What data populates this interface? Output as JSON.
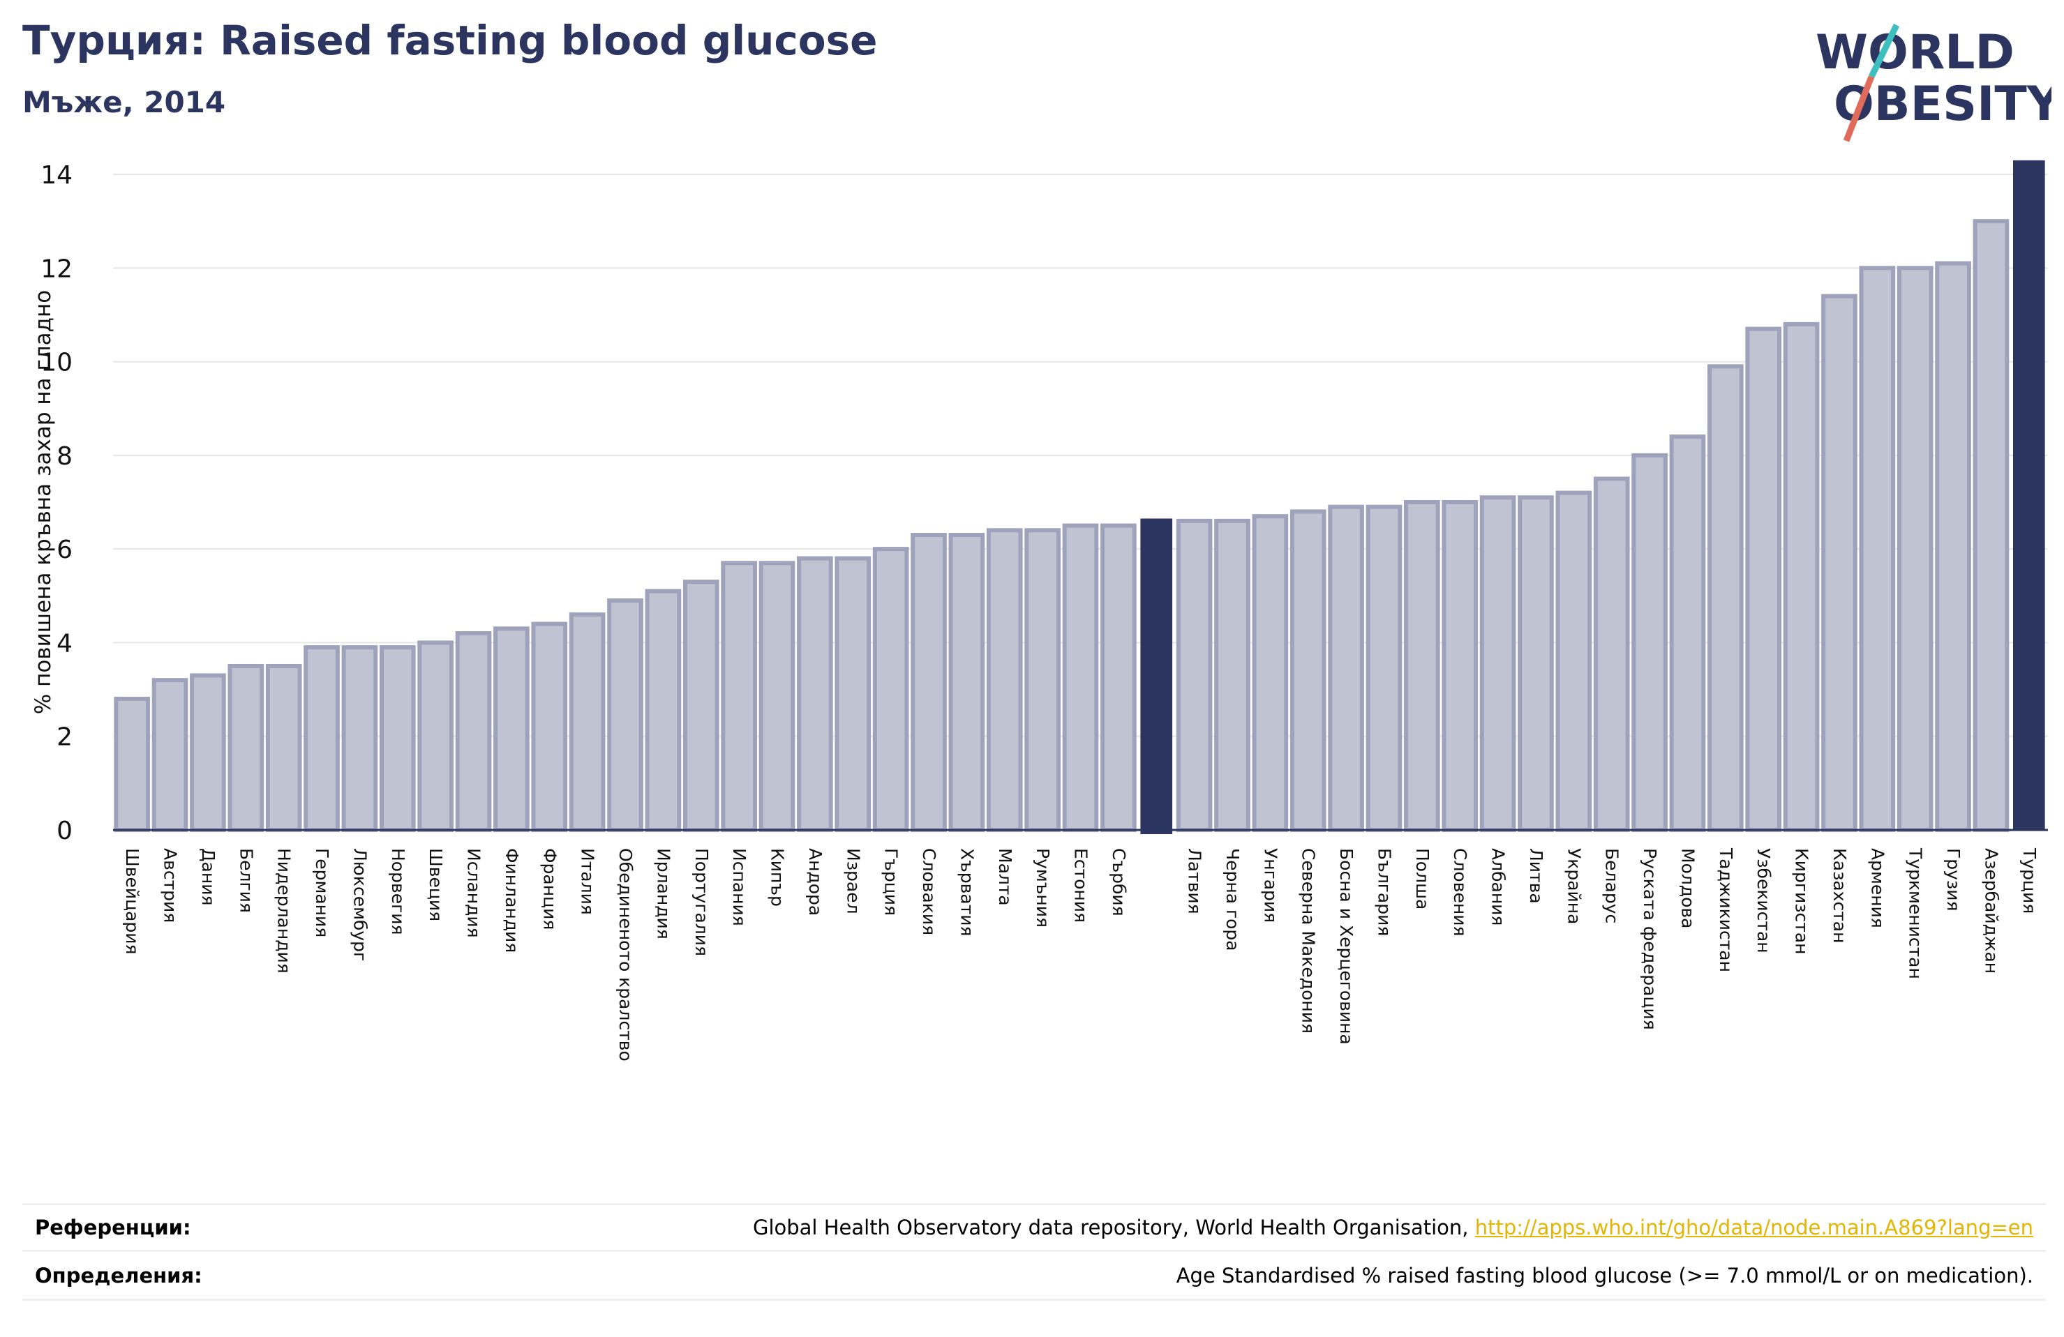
{
  "header": {
    "title": "Турция: Raised fasting blood glucose",
    "subtitle": "Мъже, 2014"
  },
  "logo": {
    "line1": "WORLD",
    "line2": "OBESITY"
  },
  "colors": {
    "title": "#2b3560",
    "bar": "#c0c3d2",
    "bar_border": "#9ea2ba",
    "highlight": "#2b3560",
    "link": "#e3b505",
    "logo_teal": "#3dbfbf",
    "logo_red": "#e06b5a"
  },
  "footer": {
    "references_label": "Референции:",
    "references_text": "Global Health Observatory data repository, World Health Organisation,",
    "references_link": "http://apps.who.int/gho/data/node.main.A869?lang=en",
    "definitions_label": "Определения:",
    "definitions_text": "Age Standardised % raised fasting blood glucose (>= 7.0 mmol/L or on medication)."
  },
  "chart_data": {
    "type": "bar",
    "ylabel": "% повишена кръвна захар на гладно",
    "ylim": [
      0,
      14
    ],
    "yticks": [
      0,
      2,
      4,
      6,
      8,
      10,
      12,
      14
    ],
    "grid": true,
    "categories": [
      "Швейцария",
      "Австрия",
      "Дания",
      "Белгия",
      "Нидерландия",
      "Германия",
      "Люксембург",
      "Норвегия",
      "Швеция",
      "Исландия",
      "Финландия",
      "Франция",
      "Италия",
      "Обединеното кралство",
      "Ирландия",
      "Португалия",
      "Испания",
      "Кипър",
      "Андора",
      "Израел",
      "Гърция",
      "Словакия",
      "Хърватия",
      "Малта",
      "Румъния",
      "Естония",
      "Сърбия",
      "",
      "Латвия",
      "Черна гора",
      "Унгария",
      "Северна Македония",
      "Босна и Херцеговина",
      "България",
      "Полша",
      "Словения",
      "Албания",
      "Литва",
      "Украйна",
      "Беларус",
      "Руската федерация",
      "Молдова",
      "Таджикистан",
      "Узбекистан",
      "Киргизстан",
      "Казахстан",
      "Армения",
      "Туркменистан",
      "Грузия",
      "Азербайджан",
      "Турция"
    ],
    "values": [
      2.8,
      3.2,
      3.3,
      3.5,
      3.5,
      3.9,
      3.9,
      3.9,
      4.0,
      4.2,
      4.3,
      4.4,
      4.6,
      4.9,
      5.1,
      5.3,
      5.7,
      5.7,
      5.8,
      5.8,
      6.0,
      6.3,
      6.3,
      6.4,
      6.4,
      6.5,
      6.5,
      6.65,
      6.6,
      6.6,
      6.7,
      6.8,
      6.9,
      6.9,
      7.0,
      7.0,
      7.1,
      7.1,
      7.2,
      7.5,
      8.0,
      8.4,
      9.9,
      10.7,
      10.8,
      11.4,
      12.0,
      12.0,
      12.1,
      13.0,
      14.3
    ],
    "highlighted": [
      27,
      50
    ]
  }
}
